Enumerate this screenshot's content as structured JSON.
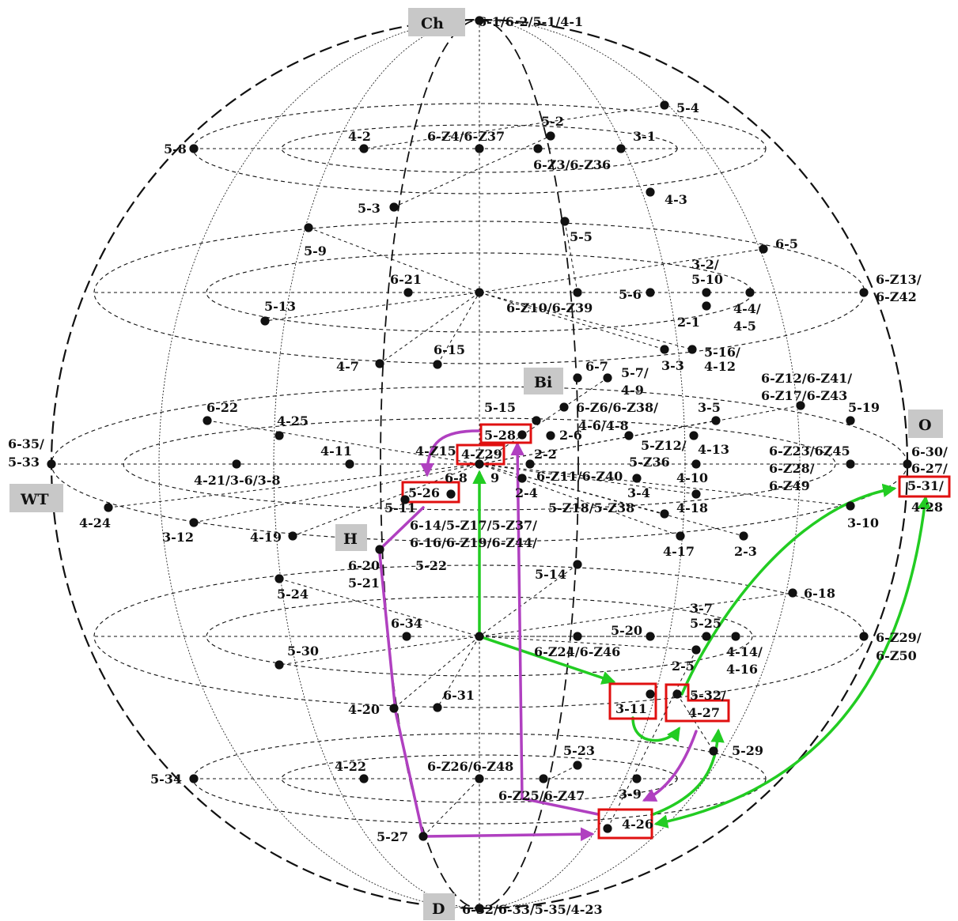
{
  "colors": {
    "ink": "#111111",
    "pole_box": "#c8c8c8",
    "highlight_box": "#e01010",
    "green_path": "#22cc22",
    "purple_path": "#b040c0"
  },
  "poles": [
    "Ch",
    "O",
    "WT",
    "H",
    "Bi",
    "D"
  ],
  "labels": [
    "6-1/6-2/5-1/4-1",
    "5-4",
    "5-8",
    "4-2",
    "6-Z4/6-Z37",
    "5-2",
    "3-1",
    "6-Z3/6-Z36",
    "4-3",
    "5-3",
    "5-5",
    "5-9",
    "6-5",
    "3-2/",
    "5-10",
    "6-Z13/",
    "6-Z42",
    "6-21",
    "5-6",
    "4-4/",
    "4-5",
    "5-13",
    "6-Z10/6-Z39",
    "2-1",
    "6-15",
    "3-3",
    "5-16/",
    "4-12",
    "4-7",
    "6-7",
    "5-7/",
    "4-9",
    "6-Z12/6-Z41/",
    "6-Z17/6-Z43",
    "6-22",
    "4-25",
    "5-15",
    "6-Z6/6-Z38/",
    "3-5",
    "5-19",
    "6-35/",
    "5-33",
    "5-28",
    "2-6",
    "4-6/4-8",
    "4-11",
    "4-Z15",
    "4-Z29",
    "2-2",
    "5-Z12/",
    "5-Z36",
    "4-13",
    "6-Z23/6Z45",
    "6-Z28/",
    "6-Z49",
    "6-30/",
    "6-27/",
    "5-31/",
    "4-28",
    "4-21/3-6/3-8",
    "6-8",
    "9",
    "6-Z11/6-Z40",
    "4-10",
    "5-26",
    "2-4",
    "3-4",
    "5-11",
    "5-Z18/5-Z38",
    "4-18",
    "4-24",
    "6-14/5-Z17/5-Z37/",
    "3-12",
    "4-19",
    "6-16/6-Z19/6-Z44/",
    "4-17",
    "2-3",
    "3-10",
    "6-20",
    "5-22",
    "5-21",
    "5-14",
    "5-24",
    "6-18",
    "3-7",
    "5-25",
    "6-34",
    "5-20",
    "6-Z29/",
    "6-Z50",
    "5-30",
    "6-Z24/6-Z46",
    "4-14/",
    "4-16",
    "2-5",
    "6-31",
    "5-32/",
    "3-11",
    "4-27",
    "4-20",
    "5-29",
    "5-23",
    "4-22",
    "6-Z26/6-Z48",
    "5-34",
    "3-9",
    "6-Z25/6-Z47",
    "4-26",
    "5-27",
    "6-32/6-33/5-35/4-23"
  ]
}
